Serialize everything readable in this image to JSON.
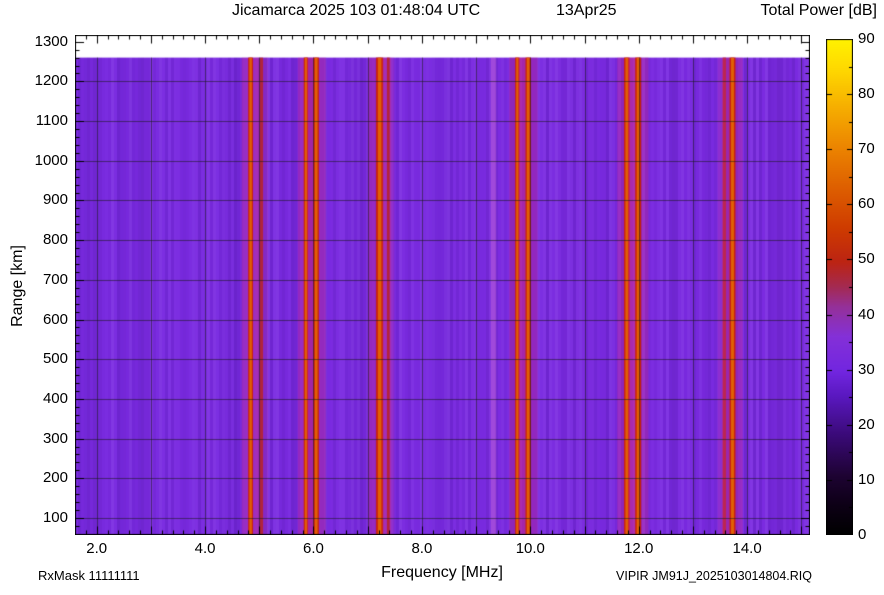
{
  "header": {
    "title": "Jicamarca 2025 103 01:48:04 UTC",
    "date": "13Apr25",
    "colorbar_title": "Total Power [dB]"
  },
  "footer": {
    "rxmask": "RxMask 11111111",
    "xlabel": "Frequency [MHz]",
    "filename": "VIPIR  JM91J_2025103014804.RIQ"
  },
  "chart_data": {
    "type": "heatmap",
    "title": "Jicamarca 2025 103 01:48:04 UTC  13Apr25",
    "xlabel": "Frequency [MHz]",
    "ylabel": "Range [km]",
    "colorbar_label": "Total Power [dB]",
    "xlim": [
      1.6,
      15.16
    ],
    "ylim": [
      57,
      1317
    ],
    "data_extent": {
      "xmin": 1.6,
      "xmax": 15.16,
      "ymin": 57,
      "ymax": 1260
    },
    "xticks": [
      2,
      4,
      6,
      8,
      10,
      12,
      14
    ],
    "xtick_labels": [
      "2.0",
      "4.0",
      "6.0",
      "8.0",
      "10.0",
      "12.0",
      "14.0"
    ],
    "yticks": [
      100,
      200,
      300,
      400,
      500,
      600,
      700,
      800,
      900,
      1000,
      1100,
      1200,
      1300
    ],
    "ytick_labels": [
      "100",
      "200",
      "300",
      "400",
      "500",
      "600",
      "700",
      "800",
      "900",
      "1000",
      "1100",
      "1200",
      "1300"
    ],
    "grid": {
      "x_interval": 1.0,
      "y_interval": 100,
      "color": "rgba(25,25,25,0.55)",
      "on": true
    },
    "background_power_db": 25,
    "background_color": "#7a2be0",
    "interference_stripes": [
      {
        "freq_mhz": 4.84,
        "width_mhz": 0.09,
        "power_db": 55,
        "strength": "strong"
      },
      {
        "freq_mhz": 5.04,
        "width_mhz": 0.06,
        "power_db": 45,
        "strength": "medium"
      },
      {
        "freq_mhz": 5.86,
        "width_mhz": 0.08,
        "power_db": 55,
        "strength": "strong"
      },
      {
        "freq_mhz": 6.05,
        "width_mhz": 0.1,
        "power_db": 55,
        "strength": "strong"
      },
      {
        "freq_mhz": 7.22,
        "width_mhz": 0.13,
        "power_db": 58,
        "strength": "strong"
      },
      {
        "freq_mhz": 7.38,
        "width_mhz": 0.05,
        "power_db": 45,
        "strength": "medium"
      },
      {
        "freq_mhz": 9.32,
        "width_mhz": 0.05,
        "power_db": 35,
        "strength": "faint"
      },
      {
        "freq_mhz": 9.76,
        "width_mhz": 0.08,
        "power_db": 55,
        "strength": "strong"
      },
      {
        "freq_mhz": 9.96,
        "width_mhz": 0.1,
        "power_db": 55,
        "strength": "strong"
      },
      {
        "freq_mhz": 11.78,
        "width_mhz": 0.1,
        "power_db": 55,
        "strength": "strong"
      },
      {
        "freq_mhz": 11.99,
        "width_mhz": 0.11,
        "power_db": 58,
        "strength": "strong"
      },
      {
        "freq_mhz": 13.58,
        "width_mhz": 0.06,
        "power_db": 45,
        "strength": "medium"
      },
      {
        "freq_mhz": 13.73,
        "width_mhz": 0.11,
        "power_db": 58,
        "strength": "strong"
      }
    ],
    "colorbar": {
      "min": 0,
      "max": 90,
      "ticks": [
        0,
        10,
        20,
        30,
        40,
        50,
        60,
        70,
        80,
        90
      ],
      "tick_labels": [
        "0",
        "10",
        "20",
        "30",
        "40",
        "50",
        "60",
        "70",
        "80",
        "90"
      ],
      "stops": [
        [
          0.0,
          "#000000"
        ],
        [
          0.06,
          "#0d0016"
        ],
        [
          0.12,
          "#1e0333"
        ],
        [
          0.2,
          "#3a0a77"
        ],
        [
          0.28,
          "#5a18c0"
        ],
        [
          0.33,
          "#7226e0"
        ],
        [
          0.4,
          "#8430d8"
        ],
        [
          0.46,
          "#953099"
        ],
        [
          0.5,
          "#a42a52"
        ],
        [
          0.55,
          "#bc2413"
        ],
        [
          0.62,
          "#cf3c00"
        ],
        [
          0.7,
          "#de5f00"
        ],
        [
          0.78,
          "#ec8400"
        ],
        [
          0.86,
          "#f6ad00"
        ],
        [
          0.94,
          "#ffd900"
        ],
        [
          1.0,
          "#fff200"
        ]
      ]
    }
  }
}
